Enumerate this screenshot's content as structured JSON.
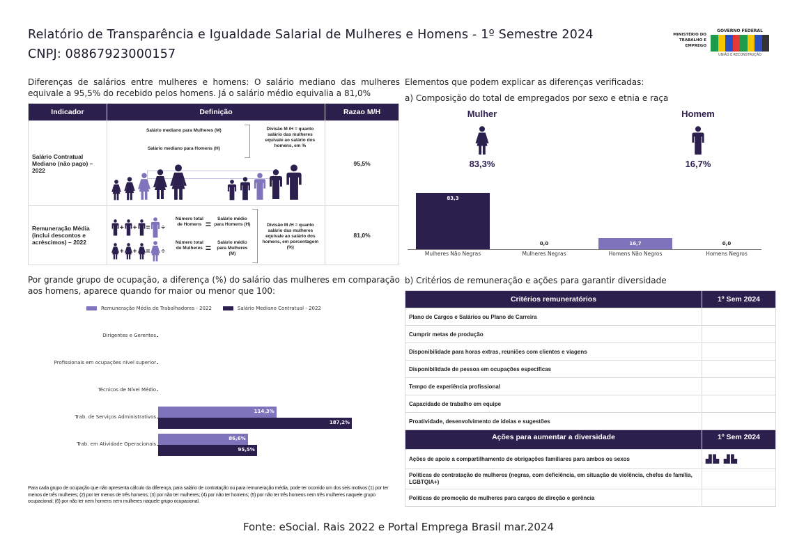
{
  "header": {
    "title": "Relatório de Transparência e Igualdade Salarial de Mulheres e Homens - 1º Semestre 2024",
    "cnpj": "CNPJ: 08867923000157",
    "logo_ministry": "MINISTÉRIO DO TRABALHO E EMPREGO",
    "logo_gov": "GOVERNO FEDERAL",
    "logo_brasil": "BRASIL",
    "logo_tagline": "UNIÃO E RECONSTRUÇÃO"
  },
  "colors": {
    "dark": "#2b1f4e",
    "light": "#7f74bc"
  },
  "left": {
    "intro": "Diferenças de salários entre mulheres e homens: O salário mediano das mulheres equivale a 95,5% do recebido pelos homens. Já o salário médio equivalia a 81,0%",
    "table": {
      "headers": [
        "Indicador",
        "Definição",
        "Razao M/H"
      ],
      "rows": [
        {
          "indicator": "Salário Contratual Mediano (não pago) – 2022",
          "def_m": "Salário mediano para Mulheres (M)",
          "def_h": "Salário mediano para Homens (H)",
          "def_div": "Divisão M /H = quanto salário das mulheres equivale ao salário dos homens, em %",
          "ratio": "95,5%"
        },
        {
          "indicator": "Remuneração Média (inclui descontos e acréscimos) – 2022",
          "num_h": "Número total de Homens",
          "res_h": "Salário médio para Homens (H)",
          "num_m": "Número total de Mulheres",
          "res_m": "Salário médio para Mulheres (M)",
          "def_div": "Divisão M /H = quanto salário das mulheres equivale ao salário dos homens, em porcentagem (%)",
          "ratio": "81,0%"
        }
      ]
    },
    "section2": "Por grande grupo de ocupação, a diferença (%) do salário das mulheres em comparação aos homens, aparece quando for maior ou menor que 100:",
    "footnote": "Para cada grupo de ocupação que não apresenta cálculo da diferença, para salário de contratação ou para remuneração média, pode ter ocorrido um dos seis motivos:(1) por ter menos de três mulheres; (2) por ter menos de três homens; (3) por não ter mulheres; (4) por não ter homens; (5) por não ter três homens nem três mulheres naquele grupo ocupacional; (6) por não ter nem homens nem mulheres naquele grupo ocupacional."
  },
  "right": {
    "title": "Elementos que podem explicar as diferenças verificadas:",
    "sub_a": "a) Composição do total de empregados por sexo e etnia e raça",
    "mulher": {
      "label": "Mulher",
      "pct": "83,3%"
    },
    "homem": {
      "label": "Homem",
      "pct": "16,7%"
    },
    "sub_b": "b) Critérios de remuneração e ações para garantir diversidade",
    "criteria": {
      "header": "Critérios remuneratórios",
      "period": "1º Sem 2024",
      "items": [
        "Plano de Cargos e Salários ou Plano de Carreira",
        "Cumprir metas de produção",
        "Disponibilidade para horas extras, reuniões com clientes e viagens",
        "Disponibilidade de pessoa em ocupações especificas",
        "Tempo de experiência profissional",
        "Capacidade de trabalho em equipe",
        "Proatividade, desenvolvimento de ideias e sugestões"
      ]
    },
    "actions": {
      "header": "Ações para aumentar a diversidade",
      "period": "1º Sem 2024",
      "items": [
        {
          "label": "Ações de apoio a compartilhamento de obrigações familiares para ambos os sexos",
          "icon": "building-icons"
        },
        {
          "label": "Políticas de contratação de mulheres (negras, com deficiência, em situação de violência, chefes de família, LGBTQIA+)"
        },
        {
          "label": "Políticas de promoção de mulheres para cargos de direção e gerência"
        }
      ]
    }
  },
  "footer": "Fonte: eSocial. Rais 2022 e Portal Emprega Brasil mar.2024",
  "chart_data": [
    {
      "type": "bar",
      "categories": [
        "Mulheres Não Negras",
        "Mulheres Negras",
        "Homens Não Negros",
        "Homens Negros"
      ],
      "values": [
        83.3,
        0.0,
        16.7,
        0.0
      ],
      "value_labels": [
        "83,3",
        "0,0",
        "16,7",
        "0,0"
      ],
      "colors": [
        "#2b1f4e",
        "#2b1f4e",
        "#7f74bc",
        "#7f74bc"
      ],
      "ylim": [
        0,
        100
      ],
      "grid": false
    },
    {
      "type": "bar",
      "orientation": "horizontal",
      "categories": [
        "Dirigentes e Gerentes",
        "Profissionais em ocupações nível superior",
        "Técnicos de Nível Médio",
        "Trab. de Serviços Administrativos",
        "Trab. em Atividade Operacionais"
      ],
      "series": [
        {
          "name": "Remuneração Média de Trabalhadores - 2022",
          "color": "#7f74bc",
          "values": [
            null,
            null,
            null,
            114.3,
            86.6
          ],
          "labels": [
            "",
            "",
            "",
            "114,3%",
            "86,6%"
          ]
        },
        {
          "name": "Salário Mediano Contratual - 2022",
          "color": "#2b1f4e",
          "values": [
            null,
            null,
            null,
            187.2,
            95.5
          ],
          "labels": [
            "",
            "",
            "",
            "187,2%",
            "95,5%"
          ]
        }
      ],
      "legend": "top",
      "grid": false
    }
  ]
}
